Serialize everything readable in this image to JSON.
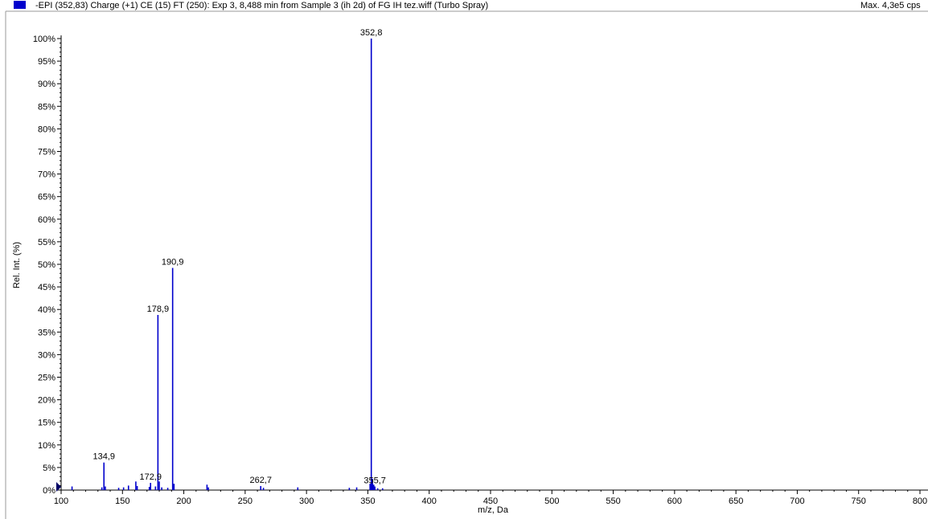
{
  "header": {
    "title": "-EPI (352,83) Charge (+1) CE (15) FT (250): Exp 3, 8,488 min from Sample 3 (ih 2d) of FG IH tez.wiff (Turbo Spray)",
    "max_label": "Max. 4,3e5 cps",
    "series_color": "#0000cc"
  },
  "chart_data": {
    "type": "bar",
    "title": "-EPI (352,83) Charge (+1) CE (15) FT (250): Exp 3, 8,488 min from Sample 3 (ih 2d) of FG IH tez.wiff (Turbo Spray)",
    "xlabel": "m/z, Da",
    "ylabel": "Rel. Int. (%)",
    "xlim": [
      100,
      800
    ],
    "ylim": [
      0,
      100
    ],
    "x_ticks": [
      "100",
      "150",
      "200",
      "250",
      "300",
      "350",
      "400",
      "450",
      "500",
      "550",
      "600",
      "650",
      "700",
      "750",
      "800"
    ],
    "y_ticks": [
      "0%",
      "5%",
      "10%",
      "15%",
      "20%",
      "25%",
      "30%",
      "35%",
      "40%",
      "45%",
      "50%",
      "55%",
      "60%",
      "65%",
      "70%",
      "75%",
      "80%",
      "85%",
      "90%",
      "95%",
      "100%"
    ],
    "grid": false,
    "peaks": [
      {
        "x": 108.9,
        "y": 0.8
      },
      {
        "x": 133.2,
        "y": 0.6
      },
      {
        "x": 134.9,
        "y": 6.1,
        "label": "134,9"
      },
      {
        "x": 136.0,
        "y": 0.8
      },
      {
        "x": 146.9,
        "y": 0.5
      },
      {
        "x": 150.9,
        "y": 0.6
      },
      {
        "x": 154.9,
        "y": 1.0
      },
      {
        "x": 160.9,
        "y": 1.9
      },
      {
        "x": 162.0,
        "y": 0.9
      },
      {
        "x": 171.9,
        "y": 0.7
      },
      {
        "x": 172.9,
        "y": 1.6,
        "label": "172,9"
      },
      {
        "x": 176.9,
        "y": 0.8
      },
      {
        "x": 178.9,
        "y": 38.8,
        "label": "178,9"
      },
      {
        "x": 180.0,
        "y": 1.9
      },
      {
        "x": 182.0,
        "y": 0.6
      },
      {
        "x": 186.9,
        "y": 0.5
      },
      {
        "x": 190.9,
        "y": 49.2,
        "label": "190,9"
      },
      {
        "x": 192.0,
        "y": 1.4
      },
      {
        "x": 218.9,
        "y": 1.2
      },
      {
        "x": 220.0,
        "y": 0.6
      },
      {
        "x": 262.7,
        "y": 0.9,
        "label": "262,7"
      },
      {
        "x": 264.9,
        "y": 0.5
      },
      {
        "x": 292.9,
        "y": 0.6
      },
      {
        "x": 334.9,
        "y": 0.5
      },
      {
        "x": 340.9,
        "y": 0.6
      },
      {
        "x": 351.8,
        "y": 1.4
      },
      {
        "x": 352.8,
        "y": 100,
        "label": "352,8"
      },
      {
        "x": 353.8,
        "y": 2.5
      },
      {
        "x": 354.8,
        "y": 1.2
      },
      {
        "x": 355.7,
        "y": 0.8,
        "label": "355,7"
      },
      {
        "x": 358.0,
        "y": 0.4
      },
      {
        "x": 362.0,
        "y": 0.4
      }
    ]
  }
}
